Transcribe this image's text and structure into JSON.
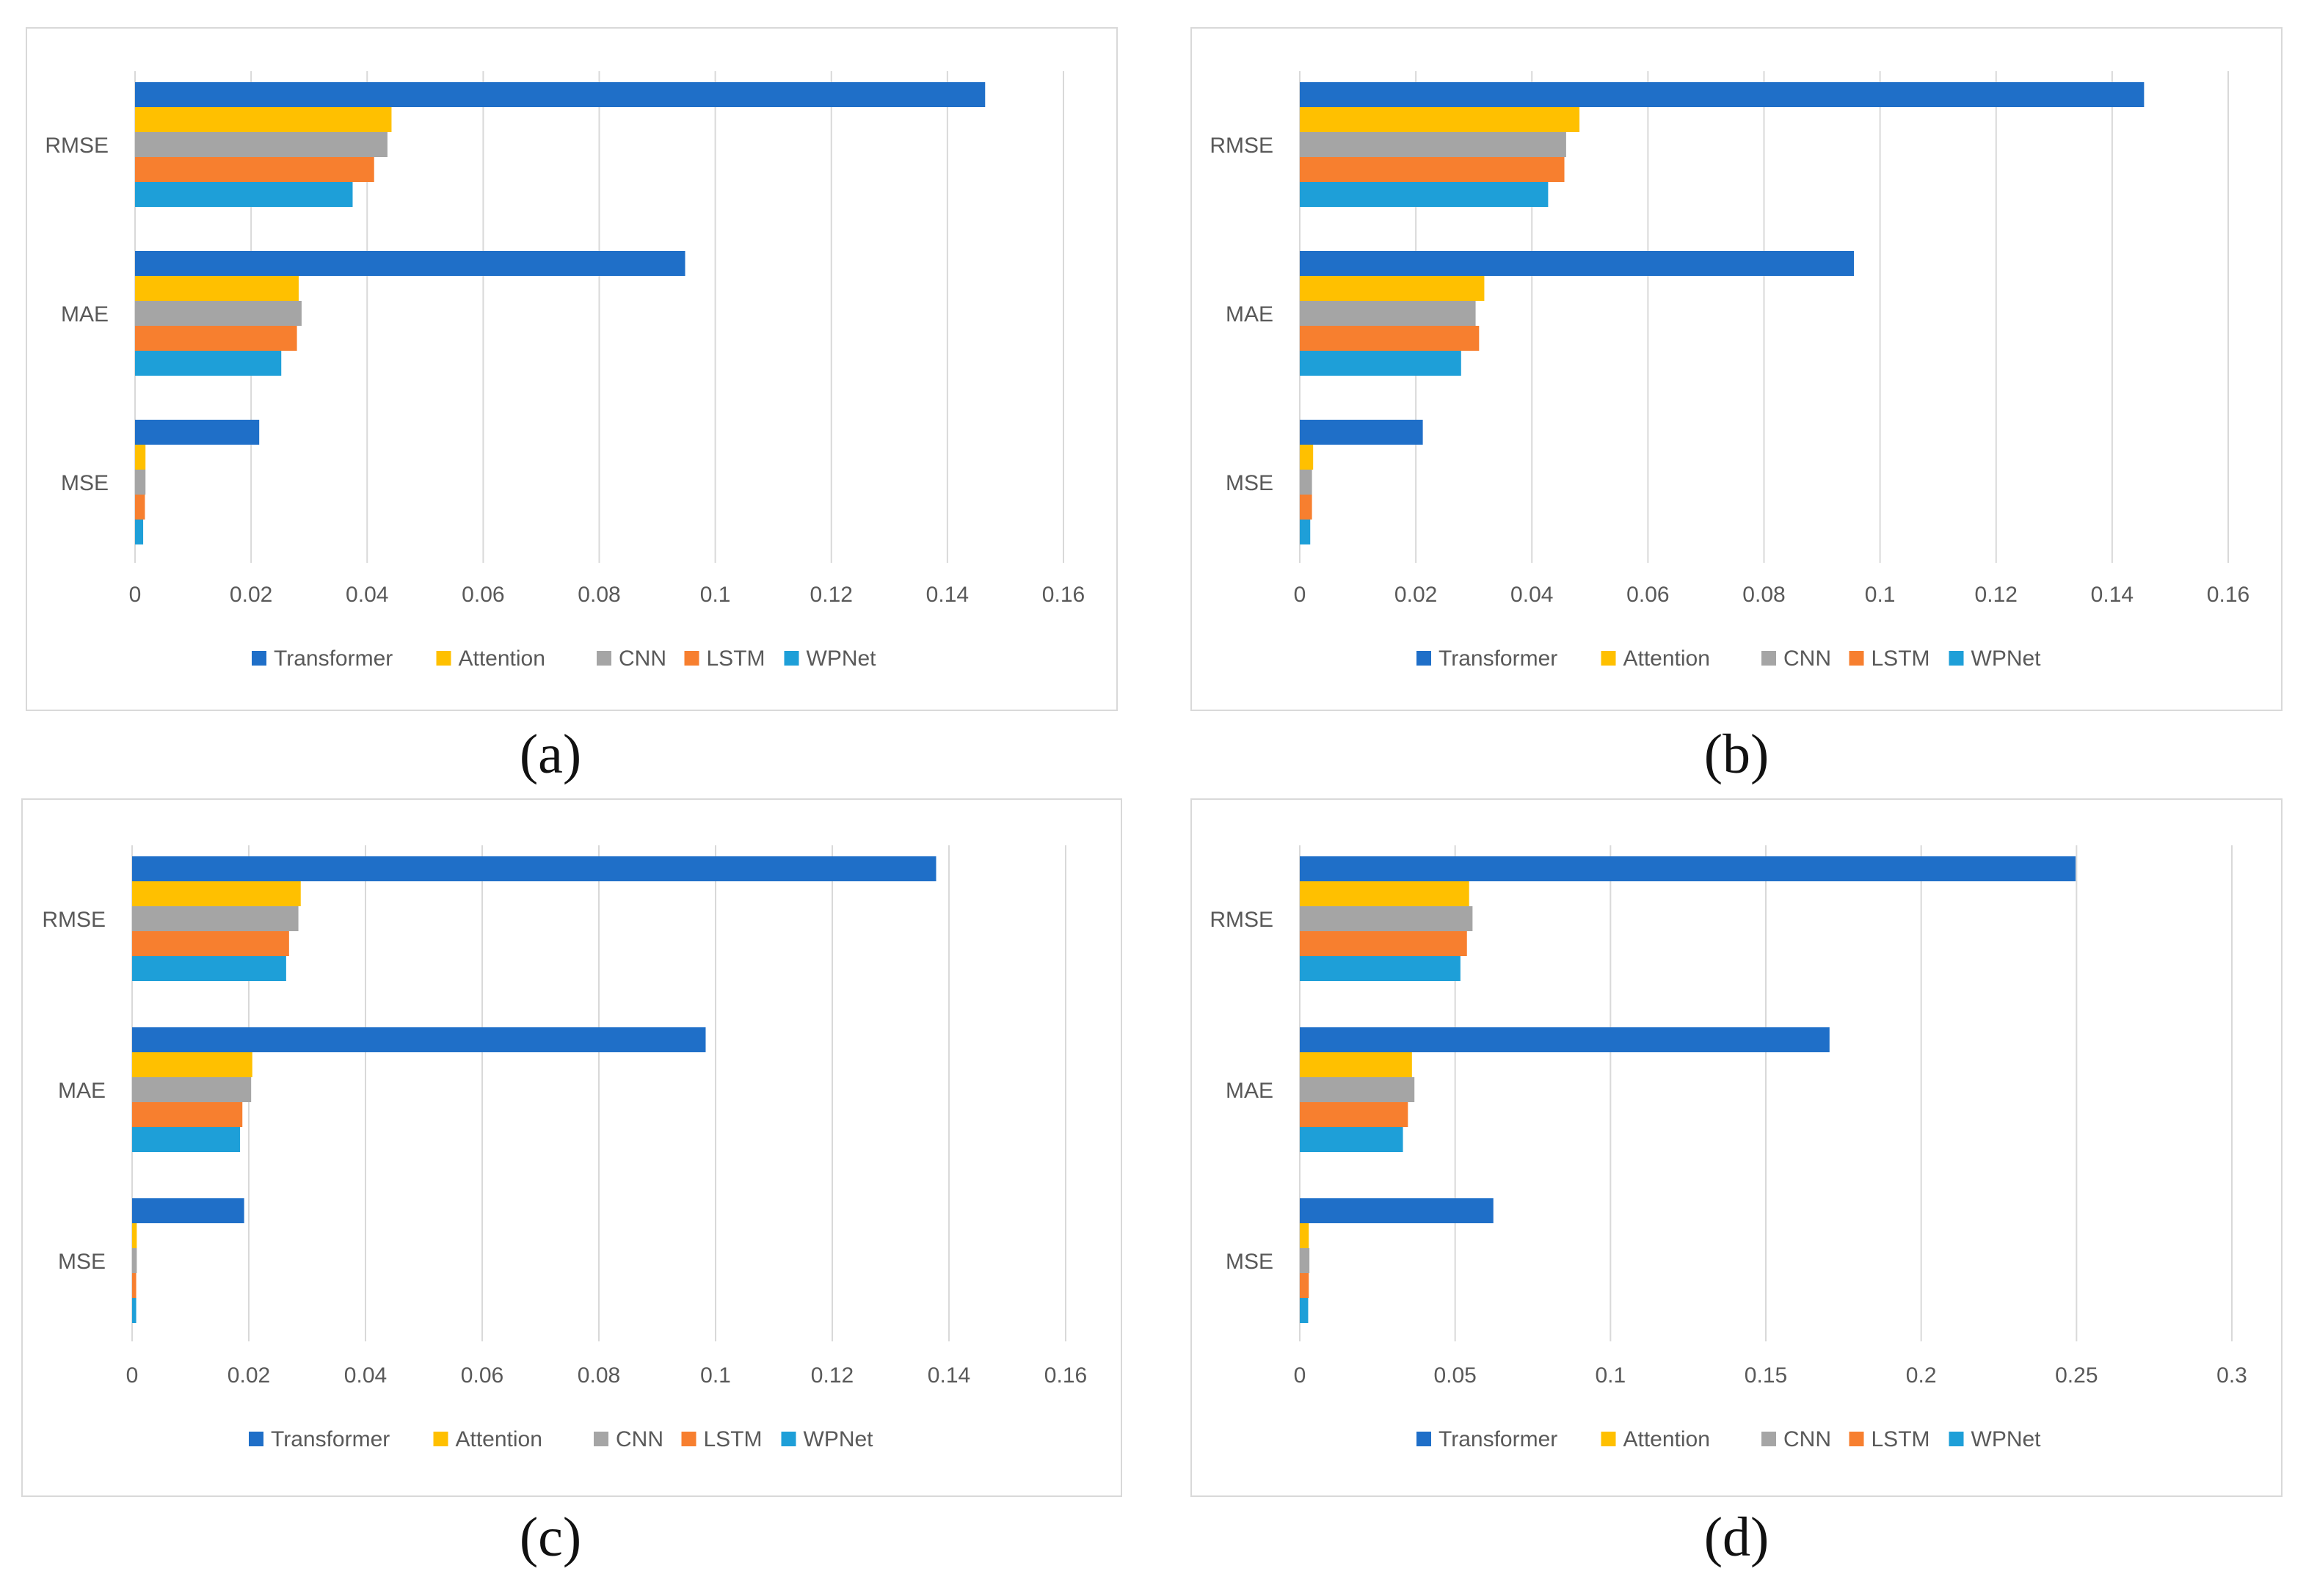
{
  "figure": {
    "captions": [
      "(a)",
      "(b)",
      "(c)",
      "(d)"
    ]
  },
  "series_names": [
    "Transformer",
    "Attention",
    "CNN",
    "LSTM",
    "WPNet"
  ],
  "series_colors": [
    "#1f6fc8",
    "#ffc000",
    "#a5a5a5",
    "#f77f2f",
    "#1e9fd8"
  ],
  "chart_data": [
    {
      "type": "bar",
      "orientation": "horizontal",
      "panel": "a",
      "categories": [
        "RMSE",
        "MAE",
        "MSE"
      ],
      "series": [
        {
          "name": "Transformer",
          "values": [
            0.1465,
            0.0948,
            0.0214
          ]
        },
        {
          "name": "Attention",
          "values": [
            0.0442,
            0.0282,
            0.0018
          ]
        },
        {
          "name": "CNN",
          "values": [
            0.0435,
            0.0287,
            0.0018
          ]
        },
        {
          "name": "LSTM",
          "values": [
            0.0412,
            0.0279,
            0.0017
          ]
        },
        {
          "name": "WPNet",
          "values": [
            0.0375,
            0.0252,
            0.0014
          ]
        }
      ],
      "xlim": [
        0,
        0.16
      ],
      "ticks": [
        "0",
        "0.02",
        "0.04",
        "0.06",
        "0.08",
        "0.1",
        "0.12",
        "0.14",
        "0.16"
      ],
      "tick_values": [
        0,
        0.02,
        0.04,
        0.06,
        0.08,
        0.1,
        0.12,
        0.14,
        0.16
      ],
      "grid": true,
      "legend": "bottom"
    },
    {
      "type": "bar",
      "orientation": "horizontal",
      "panel": "b",
      "categories": [
        "RMSE",
        "MAE",
        "MSE"
      ],
      "series": [
        {
          "name": "Transformer",
          "values": [
            0.1455,
            0.0955,
            0.0212
          ]
        },
        {
          "name": "Attention",
          "values": [
            0.0482,
            0.0318,
            0.0023
          ]
        },
        {
          "name": "CNN",
          "values": [
            0.0459,
            0.0303,
            0.0021
          ]
        },
        {
          "name": "LSTM",
          "values": [
            0.0456,
            0.0309,
            0.0021
          ]
        },
        {
          "name": "WPNet",
          "values": [
            0.0428,
            0.0278,
            0.0018
          ]
        }
      ],
      "xlim": [
        0,
        0.16
      ],
      "ticks": [
        "0",
        "0.02",
        "0.04",
        "0.06",
        "0.08",
        "0.1",
        "0.12",
        "0.14",
        "0.16"
      ],
      "tick_values": [
        0,
        0.02,
        0.04,
        0.06,
        0.08,
        0.1,
        0.12,
        0.14,
        0.16
      ],
      "grid": true,
      "legend": "bottom"
    },
    {
      "type": "bar",
      "orientation": "horizontal",
      "panel": "c",
      "categories": [
        "RMSE",
        "MAE",
        "MSE"
      ],
      "series": [
        {
          "name": "Transformer",
          "values": [
            0.1378,
            0.0983,
            0.0192
          ]
        },
        {
          "name": "Attention",
          "values": [
            0.0289,
            0.0206,
            0.0008
          ]
        },
        {
          "name": "CNN",
          "values": [
            0.0285,
            0.0204,
            0.0008
          ]
        },
        {
          "name": "LSTM",
          "values": [
            0.0269,
            0.0189,
            0.0007
          ]
        },
        {
          "name": "WPNet",
          "values": [
            0.0264,
            0.0185,
            0.0007
          ]
        }
      ],
      "xlim": [
        0,
        0.16
      ],
      "ticks": [
        "0",
        "0.02",
        "0.04",
        "0.06",
        "0.08",
        "0.1",
        "0.12",
        "0.14",
        "0.16"
      ],
      "tick_values": [
        0,
        0.02,
        0.04,
        0.06,
        0.08,
        0.1,
        0.12,
        0.14,
        0.16
      ],
      "grid": true,
      "legend": "bottom"
    },
    {
      "type": "bar",
      "orientation": "horizontal",
      "panel": "d",
      "categories": [
        "RMSE",
        "MAE",
        "MSE"
      ],
      "series": [
        {
          "name": "Transformer",
          "values": [
            0.2497,
            0.1705,
            0.0623
          ]
        },
        {
          "name": "Attention",
          "values": [
            0.0545,
            0.0361,
            0.0029
          ]
        },
        {
          "name": "CNN",
          "values": [
            0.0556,
            0.0369,
            0.0031
          ]
        },
        {
          "name": "LSTM",
          "values": [
            0.0538,
            0.0348,
            0.0029
          ]
        },
        {
          "name": "WPNet",
          "values": [
            0.0517,
            0.0332,
            0.0027
          ]
        }
      ],
      "xlim": [
        0,
        0.3
      ],
      "ticks": [
        "0",
        "0.05",
        "0.1",
        "0.15",
        "0.2",
        "0.25",
        "0.3"
      ],
      "tick_values": [
        0,
        0.05,
        0.1,
        0.15,
        0.2,
        0.25,
        0.3
      ],
      "grid": true,
      "legend": "bottom"
    }
  ]
}
